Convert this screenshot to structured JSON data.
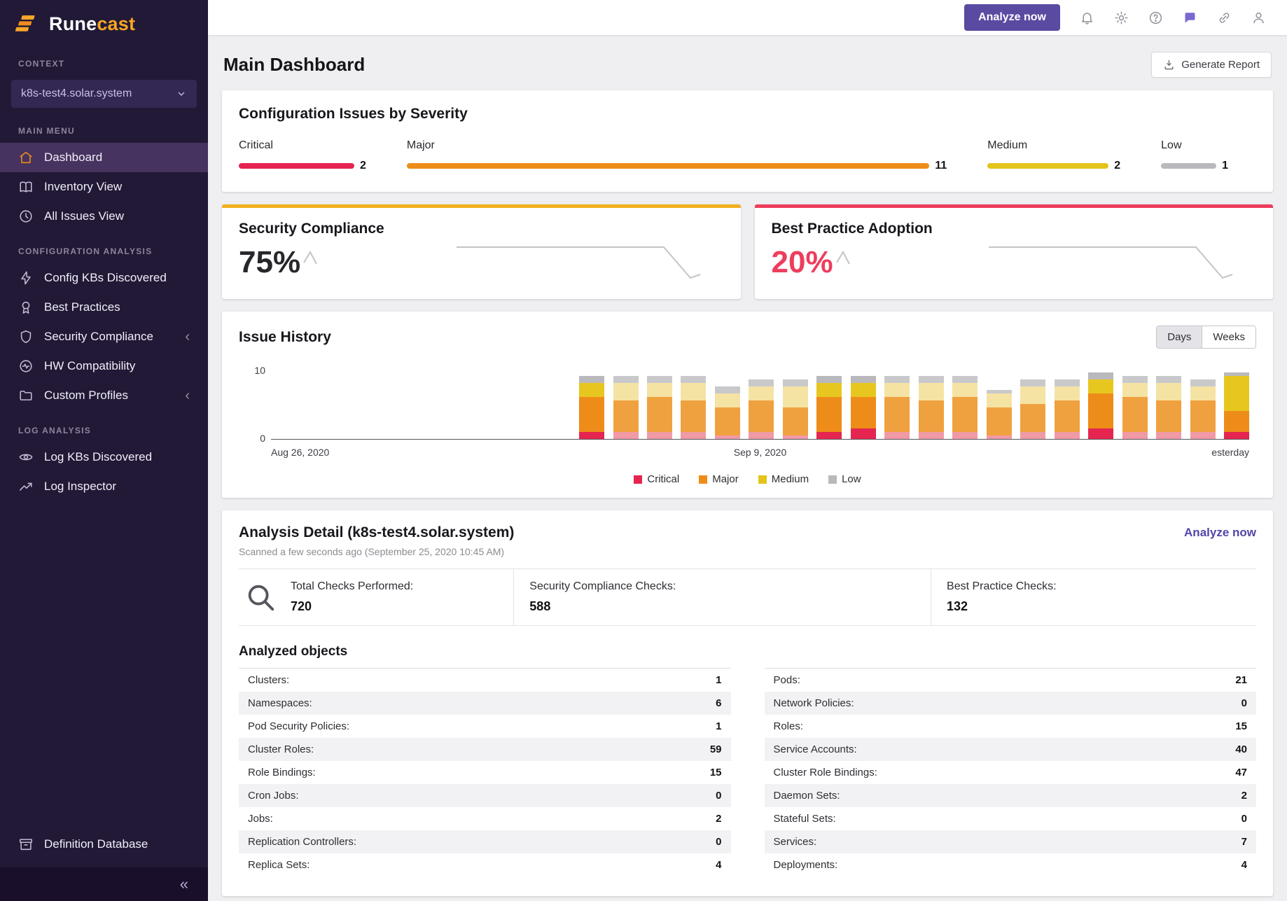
{
  "brand": {
    "name_primary": "Rune",
    "name_accent": "cast"
  },
  "sidebar": {
    "context_label": "CONTEXT",
    "context_value": "k8s-test4.solar.system",
    "sections": {
      "main": "MAIN MENU",
      "config": "CONFIGURATION ANALYSIS",
      "log": "LOG ANALYSIS"
    },
    "main_menu": [
      {
        "label": "Dashboard"
      },
      {
        "label": "Inventory View"
      },
      {
        "label": "All Issues View"
      }
    ],
    "config_menu": [
      {
        "label": "Config KBs Discovered"
      },
      {
        "label": "Best Practices"
      },
      {
        "label": "Security Compliance"
      },
      {
        "label": "HW Compatibility"
      },
      {
        "label": "Custom Profiles"
      }
    ],
    "log_menu": [
      {
        "label": "Log KBs Discovered"
      },
      {
        "label": "Log Inspector"
      }
    ],
    "bottom_item": "Definition Database",
    "collapse_glyph": "«",
    "expand_glyph": "‹"
  },
  "topbar": {
    "analyze_button": "Analyze now"
  },
  "page": {
    "title": "Main Dashboard",
    "generate_report": "Generate Report"
  },
  "severity_card": {
    "title": "Configuration Issues by Severity",
    "items": [
      {
        "label": "Critical",
        "count": 2,
        "color": "#e5254f"
      },
      {
        "label": "Major",
        "count": 11,
        "color": "#ee8c19"
      },
      {
        "label": "Medium",
        "count": 2,
        "color": "#e3c41c"
      },
      {
        "label": "Low",
        "count": 1,
        "color": "#b9b9bd"
      }
    ]
  },
  "security_card": {
    "title": "Security Compliance",
    "value": "75%",
    "accent": "#f2b01e",
    "spark_mini": [
      [
        2,
        20
      ],
      [
        11,
        5
      ],
      [
        20,
        22
      ]
    ],
    "spark_large": [
      [
        4,
        10
      ],
      [
        300,
        10
      ],
      [
        338,
        54
      ],
      [
        352,
        49
      ]
    ]
  },
  "bp_card": {
    "title": "Best Practice Adoption",
    "value": "20%",
    "accent": "#ee3d5c",
    "spark_mini": [
      [
        2,
        20
      ],
      [
        11,
        5
      ],
      [
        20,
        22
      ]
    ],
    "spark_large": [
      [
        4,
        10
      ],
      [
        300,
        10
      ],
      [
        338,
        54
      ],
      [
        352,
        49
      ]
    ]
  },
  "issue_history": {
    "title": "Issue History",
    "toggle": [
      "Days",
      "Weeks"
    ],
    "active_toggle": "Days",
    "y_max_label": "10",
    "y_min_label": "0",
    "x_labels": [
      "Aug 26, 2020",
      "Sep 9, 2020",
      "esterday"
    ],
    "legend": [
      {
        "label": "Critical",
        "color": "#e5254f"
      },
      {
        "label": "Major",
        "color": "#ee8c19"
      },
      {
        "label": "Medium",
        "color": "#e3c41c"
      },
      {
        "label": "Low",
        "color": "#b9b9bd"
      }
    ]
  },
  "chart_data": {
    "type": "bar",
    "stacked": true,
    "title": "Issue History",
    "ylim": [
      0,
      10
    ],
    "x_range": [
      "Aug 26, 2020",
      "Yesterday"
    ],
    "series_order": [
      "critical",
      "major",
      "medium",
      "low"
    ],
    "colors": {
      "critical": "#e5254f",
      "major": "#ee8c19",
      "medium": "#e7c71f",
      "low": "#b9b9bd"
    },
    "colors_muted": {
      "critical": "#f09aa6",
      "major": "#f0a13f",
      "medium": "#f5e3a4",
      "low": "#c9c9cc"
    },
    "bars": [
      {
        "critical": 1,
        "major": 5,
        "medium": 2,
        "low": 1,
        "muted": false
      },
      {
        "critical": 1,
        "major": 4.5,
        "medium": 2.5,
        "low": 1,
        "muted": true
      },
      {
        "critical": 1,
        "major": 5,
        "medium": 2,
        "low": 1,
        "muted": true
      },
      {
        "critical": 1,
        "major": 4.5,
        "medium": 2.5,
        "low": 1,
        "muted": true
      },
      {
        "critical": 0.5,
        "major": 4,
        "medium": 2,
        "low": 1,
        "muted": true
      },
      {
        "critical": 1,
        "major": 4.5,
        "medium": 2,
        "low": 1,
        "muted": true
      },
      {
        "critical": 0.5,
        "major": 4,
        "medium": 3,
        "low": 1,
        "muted": true
      },
      {
        "critical": 1,
        "major": 5,
        "medium": 2,
        "low": 1,
        "muted": false
      },
      {
        "critical": 1.5,
        "major": 4.5,
        "medium": 2,
        "low": 1,
        "muted": false
      },
      {
        "critical": 1,
        "major": 5,
        "medium": 2,
        "low": 1,
        "muted": true
      },
      {
        "critical": 1,
        "major": 4.5,
        "medium": 2.5,
        "low": 1,
        "muted": true
      },
      {
        "critical": 1,
        "major": 5,
        "medium": 2,
        "low": 1,
        "muted": true
      },
      {
        "critical": 0.5,
        "major": 4,
        "medium": 2,
        "low": 0.5,
        "muted": true
      },
      {
        "critical": 1,
        "major": 4,
        "medium": 2.5,
        "low": 1,
        "muted": true
      },
      {
        "critical": 1,
        "major": 4.5,
        "medium": 2,
        "low": 1,
        "muted": true
      },
      {
        "critical": 1.5,
        "major": 5,
        "medium": 2,
        "low": 1,
        "muted": false
      },
      {
        "critical": 1,
        "major": 5,
        "medium": 2,
        "low": 1,
        "muted": true
      },
      {
        "critical": 1,
        "major": 4.5,
        "medium": 2.5,
        "low": 1,
        "muted": true
      },
      {
        "critical": 1,
        "major": 4.5,
        "medium": 2,
        "low": 1,
        "muted": true
      },
      {
        "critical": 1,
        "major": 3,
        "medium": 5,
        "low": 0.5,
        "muted": false
      }
    ]
  },
  "analysis": {
    "title": "Analysis Detail (k8s-test4.solar.system)",
    "link": "Analyze now",
    "subtitle": "Scanned a few seconds ago (September 25, 2020 10:45 AM)",
    "stats": [
      {
        "label": "Total Checks Performed:",
        "value": "720"
      },
      {
        "label": "Security Compliance Checks:",
        "value": "588"
      },
      {
        "label": "Best Practice Checks:",
        "value": "132"
      }
    ],
    "objects_title": "Analyzed objects",
    "objects_left": [
      [
        "Clusters:",
        "1"
      ],
      [
        "Namespaces:",
        "6"
      ],
      [
        "Pod Security Policies:",
        "1"
      ],
      [
        "Cluster Roles:",
        "59"
      ],
      [
        "Role Bindings:",
        "15"
      ],
      [
        "Cron Jobs:",
        "0"
      ],
      [
        "Jobs:",
        "2"
      ],
      [
        "Replication Controllers:",
        "0"
      ],
      [
        "Replica Sets:",
        "4"
      ]
    ],
    "objects_right": [
      [
        "Pods:",
        "21"
      ],
      [
        "Network Policies:",
        "0"
      ],
      [
        "Roles:",
        "15"
      ],
      [
        "Service Accounts:",
        "40"
      ],
      [
        "Cluster Role Bindings:",
        "47"
      ],
      [
        "Daemon Sets:",
        "2"
      ],
      [
        "Stateful Sets:",
        "0"
      ],
      [
        "Services:",
        "7"
      ],
      [
        "Deployments:",
        "4"
      ]
    ]
  }
}
